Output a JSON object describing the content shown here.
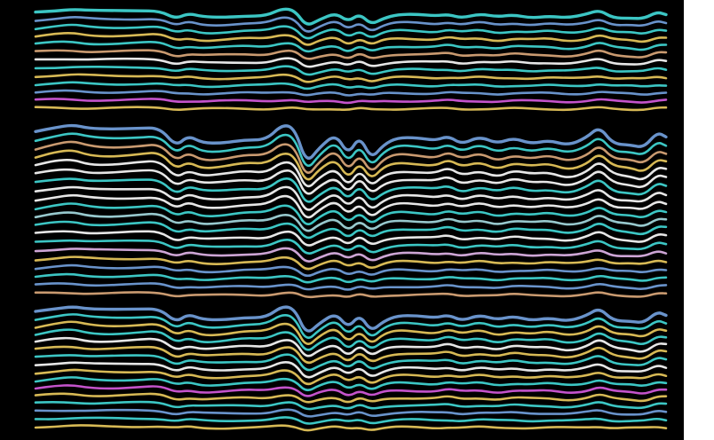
{
  "image": {
    "background": "#000000",
    "margin_color": "#ffffff",
    "palette": [
      "#3fd1cf",
      "#e3c35a",
      "#f2f2f2",
      "#6f9bd6",
      "#d4a276",
      "#cf57d6",
      "#d8aee0",
      "#9fd3d8"
    ],
    "bands": [
      {
        "line_count": 13,
        "accent": "#cf57d6"
      },
      {
        "line_count": 20,
        "accent": "#d8aee0"
      },
      {
        "line_count": 16,
        "accent": "#cf57d6"
      }
    ]
  }
}
